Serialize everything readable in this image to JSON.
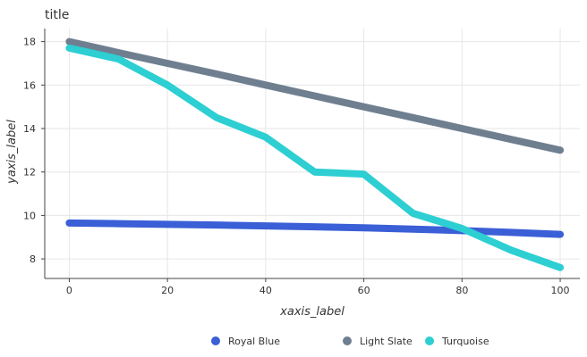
{
  "chart_data": {
    "type": "line",
    "title": "title",
    "xlabel": "xaxis_label",
    "ylabel": "yaxis_label",
    "xlim": [
      -5,
      104
    ],
    "ylim": [
      7.1,
      18.6
    ],
    "x_ticks": [
      0,
      20,
      40,
      60,
      80,
      100
    ],
    "y_ticks": [
      8,
      10,
      12,
      14,
      16,
      18
    ],
    "grid": true,
    "legend_position": "bottom",
    "x": [
      0,
      10,
      20,
      30,
      40,
      50,
      60,
      70,
      80,
      90,
      100
    ],
    "series": [
      {
        "name": "Royal Blue",
        "color": "#3a5fd6",
        "values": [
          9.65,
          9.62,
          9.59,
          9.56,
          9.52,
          9.48,
          9.43,
          9.37,
          9.3,
          9.22,
          9.13
        ]
      },
      {
        "name": "Light Slate",
        "color": "#6f7f90",
        "values": [
          18.0,
          17.49,
          17.0,
          16.51,
          16.0,
          15.5,
          15.0,
          14.5,
          14.0,
          13.5,
          13.0
        ]
      },
      {
        "name": "Turquoise",
        "color": "#2dcfd3",
        "values": [
          17.7,
          17.2,
          16.0,
          14.5,
          13.6,
          12.0,
          11.9,
          10.1,
          9.4,
          8.4,
          7.6
        ]
      }
    ]
  }
}
